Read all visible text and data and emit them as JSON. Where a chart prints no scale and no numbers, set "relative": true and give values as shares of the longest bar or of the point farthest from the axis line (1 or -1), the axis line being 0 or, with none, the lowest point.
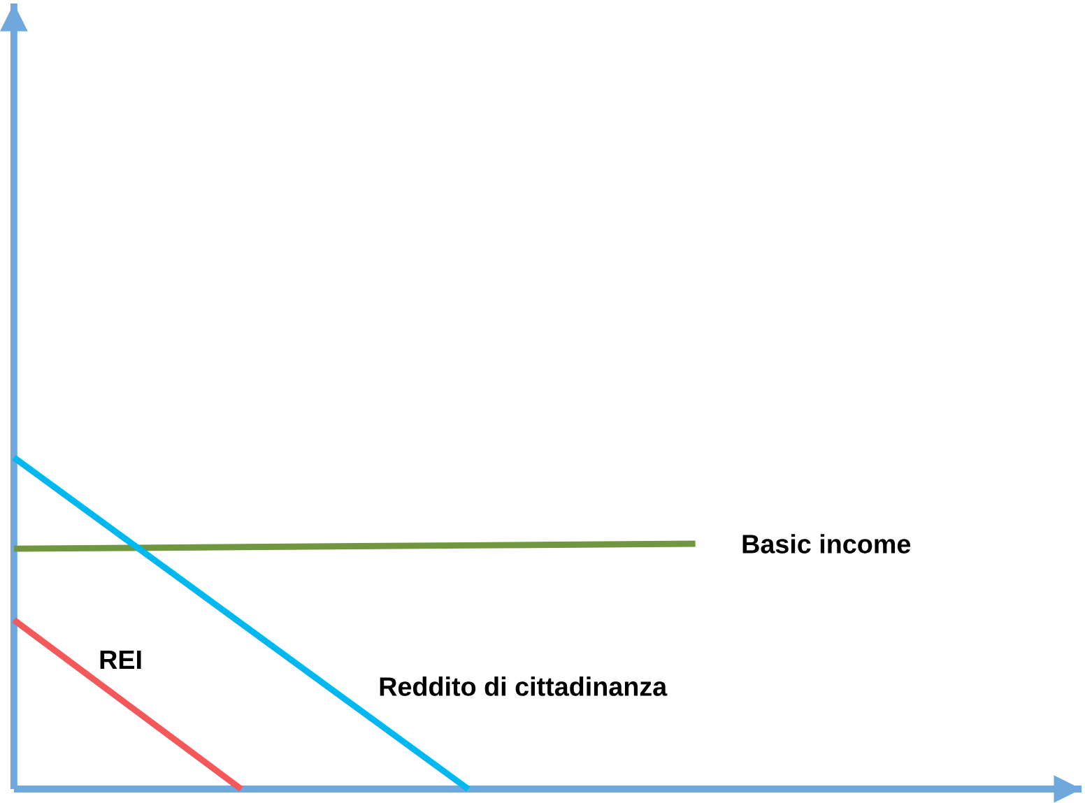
{
  "chart_data": {
    "type": "line",
    "relative": true,
    "categories": [
      null,
      null,
      null,
      null
    ],
    "series": [
      {
        "name": "Basic income",
        "color": "#70963f",
        "values": [
          0.725,
          0.73,
          0.735,
          0.74
        ]
      },
      {
        "name": "Reddito di cittadinanza",
        "color": "#00b8f0",
        "values": [
          1,
          0.5,
          0,
          null
        ]
      },
      {
        "name": "REI",
        "color": "#f4585b",
        "values": [
          0.51,
          0,
          null,
          null
        ]
      }
    ]
  }
}
